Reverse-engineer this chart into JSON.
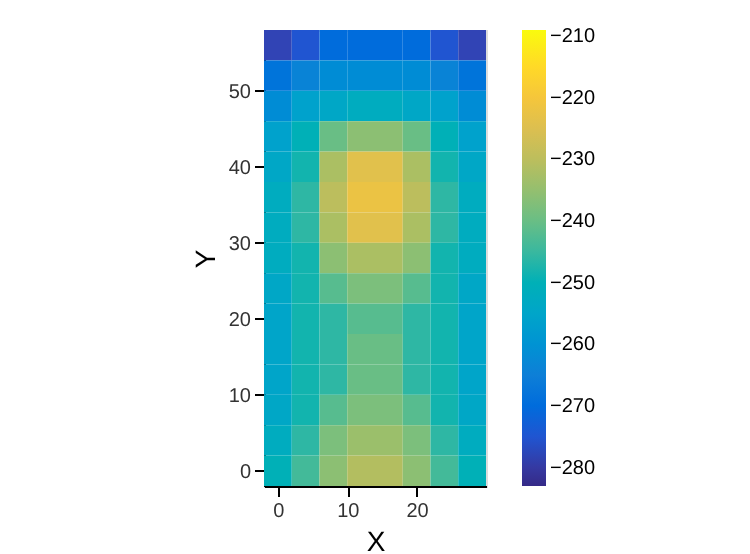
{
  "chart_data": {
    "type": "heatmap",
    "xlabel": "X",
    "ylabel": "Y",
    "x": [
      0,
      4,
      8,
      12,
      16,
      20,
      24,
      28
    ],
    "y": [
      56,
      52,
      48,
      44,
      40,
      36,
      32,
      28,
      24,
      20,
      16,
      12,
      8,
      4,
      0
    ],
    "cells": [
      [
        -278,
        -275,
        -270,
        -270,
        -270,
        -270,
        -275,
        -278
      ],
      [
        -268,
        -264,
        -262,
        -262,
        -262,
        -262,
        -264,
        -268
      ],
      [
        -262,
        -256,
        -254,
        -252,
        -252,
        -254,
        -256,
        -262
      ],
      [
        -256,
        -250,
        -240,
        -236,
        -236,
        -240,
        -250,
        -256
      ],
      [
        -254,
        -248,
        -232,
        -224,
        -224,
        -232,
        -248,
        -254
      ],
      [
        -252,
        -246,
        -230,
        -222,
        -222,
        -230,
        -246,
        -252
      ],
      [
        -252,
        -246,
        -232,
        -224,
        -224,
        -232,
        -246,
        -252
      ],
      [
        -252,
        -248,
        -236,
        -232,
        -232,
        -236,
        -248,
        -252
      ],
      [
        -254,
        -248,
        -242,
        -238,
        -238,
        -242,
        -248,
        -254
      ],
      [
        -255,
        -248,
        -246,
        -242,
        -242,
        -246,
        -248,
        -255
      ],
      [
        -255,
        -248,
        -246,
        -240,
        -240,
        -246,
        -248,
        -255
      ],
      [
        -255,
        -248,
        -246,
        -240,
        -240,
        -246,
        -248,
        -255
      ],
      [
        -254,
        -248,
        -242,
        -238,
        -238,
        -242,
        -248,
        -254
      ],
      [
        -252,
        -246,
        -238,
        -234,
        -234,
        -238,
        -246,
        -252
      ],
      [
        -250,
        -244,
        -236,
        -231,
        -231,
        -236,
        -244,
        -250
      ]
    ],
    "xlim": [
      -2,
      30
    ],
    "ylim": [
      -2,
      58
    ],
    "xticks": [
      0,
      10,
      20
    ],
    "yticks": [
      0,
      10,
      20,
      30,
      40,
      50
    ],
    "clim": [
      -283,
      -209
    ],
    "cticks": [
      -280,
      -270,
      -260,
      -250,
      -240,
      -230,
      -220,
      -210
    ],
    "colors": [
      "#352a87",
      "#0f5cdd",
      "#1481d6",
      "#06a4ca",
      "#2eb7a4",
      "#87bf77",
      "#d1bb59",
      "#fec832",
      "#f9fb0e"
    ],
    "grid": false
  }
}
